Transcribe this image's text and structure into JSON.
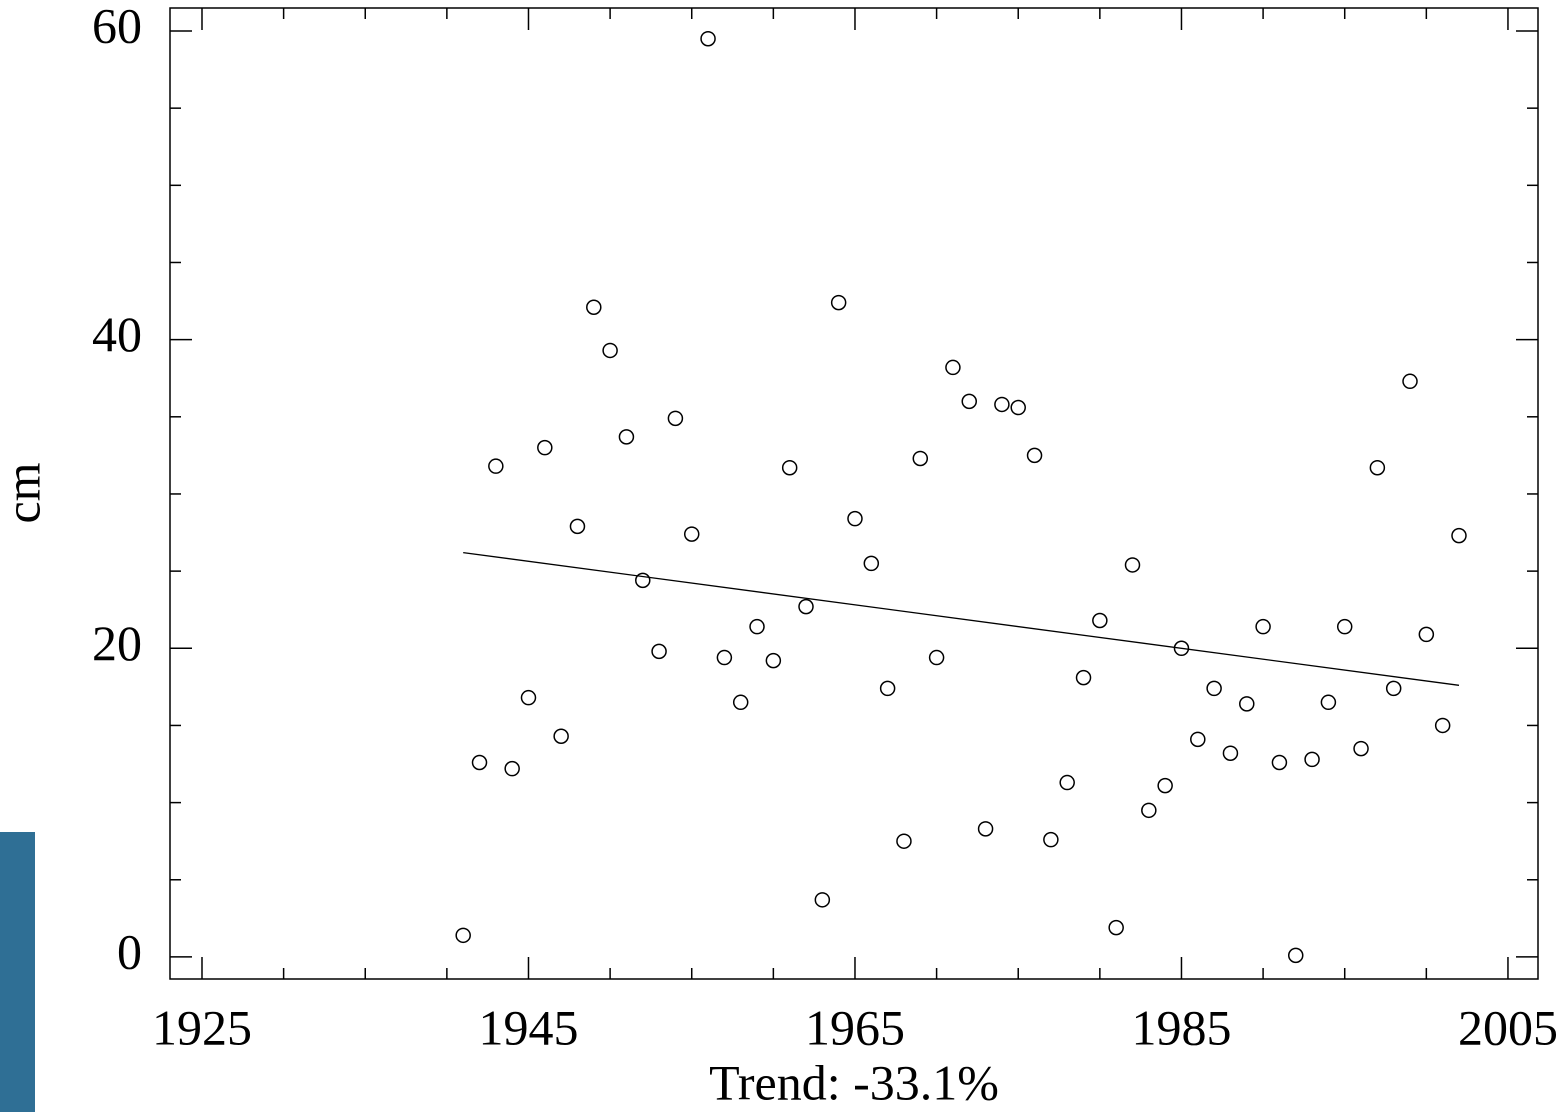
{
  "chart_data": {
    "type": "scatter",
    "x_label": "Trend: -33.1%",
    "y_label": "cm",
    "x": [
      1941,
      1942,
      1943,
      1944,
      1945,
      1946,
      1947,
      1948,
      1949,
      1950,
      1951,
      1952,
      1953,
      1954,
      1955,
      1956,
      1957,
      1958,
      1959,
      1960,
      1961,
      1962,
      1963,
      1964,
      1965,
      1966,
      1967,
      1968,
      1969,
      1970,
      1971,
      1972,
      1973,
      1974,
      1975,
      1976,
      1977,
      1978,
      1979,
      1980,
      1981,
      1982,
      1983,
      1984,
      1985,
      1986,
      1987,
      1988,
      1989,
      1990,
      1991,
      1992,
      1993,
      1994,
      1995,
      1996,
      1997,
      1998,
      1999,
      2000,
      2001,
      2002
    ],
    "values": [
      1.4,
      12.6,
      31.8,
      12.2,
      16.8,
      33.0,
      14.3,
      27.9,
      42.1,
      39.3,
      33.7,
      24.4,
      19.8,
      34.9,
      27.4,
      59.5,
      19.4,
      16.5,
      21.4,
      19.2,
      31.7,
      22.7,
      3.7,
      42.4,
      28.4,
      25.5,
      17.4,
      7.5,
      32.3,
      19.4,
      38.2,
      36.0,
      8.3,
      35.8,
      35.6,
      32.5,
      7.6,
      11.3,
      18.1,
      21.8,
      1.9,
      25.4,
      9.5,
      11.1,
      20.0,
      14.1,
      17.4,
      13.2,
      16.4,
      21.4,
      12.6,
      0.1,
      12.8,
      16.5,
      21.4,
      13.5,
      31.7,
      17.4,
      37.3,
      20.9,
      15.0,
      27.3
    ],
    "color": "#000000",
    "trend_line": {
      "x": [
        1941,
        2002
      ],
      "values": [
        26.2,
        17.6
      ]
    },
    "xlim": [
      1923.04,
      2006.84
    ],
    "ylim": [
      -1.43,
      61.49
    ],
    "xticks": [
      1925,
      1945,
      1965,
      1985,
      2005
    ],
    "yticks": [
      0,
      20,
      40,
      60
    ],
    "xminorticks": [
      1930,
      1935,
      1940,
      1950,
      1955,
      1960,
      1970,
      1975,
      1980,
      1990,
      1995,
      2000
    ],
    "yminorticks": [
      5,
      10,
      15,
      25,
      30,
      35,
      45,
      50,
      55
    ]
  }
}
